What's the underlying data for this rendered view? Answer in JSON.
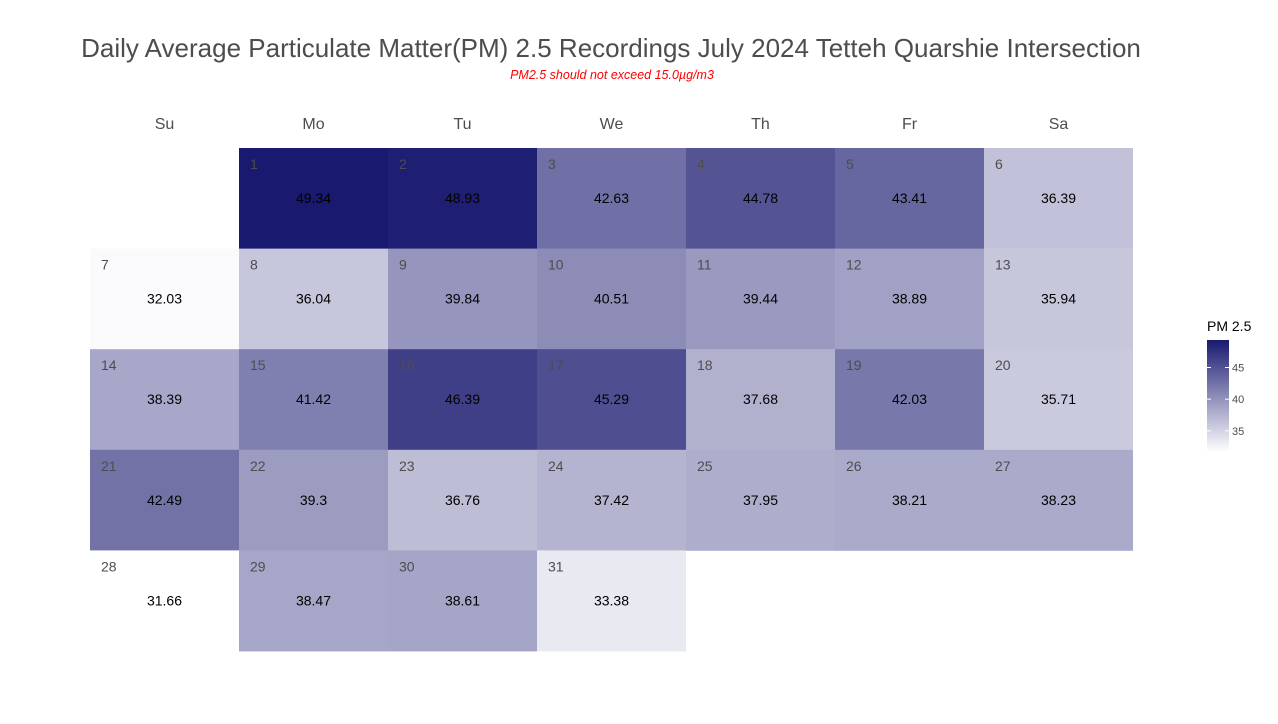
{
  "chart_data": {
    "type": "heatmap",
    "title": "Daily Average Particulate Matter(PM) 2.5 Recordings July 2024 Tetteh Quarshie Intersection",
    "subtitle": "PM2.5 should not exceed 15.0µg/m3",
    "weekdays": [
      "Su",
      "Mo",
      "Tu",
      "We",
      "Th",
      "Fr",
      "Sa"
    ],
    "first_weekday_index": 1,
    "days": [
      1,
      2,
      3,
      4,
      5,
      6,
      7,
      8,
      9,
      10,
      11,
      12,
      13,
      14,
      15,
      16,
      17,
      18,
      19,
      20,
      21,
      22,
      23,
      24,
      25,
      26,
      27,
      28,
      29,
      30,
      31
    ],
    "values": [
      49.34,
      48.93,
      42.63,
      44.78,
      43.41,
      36.39,
      32.03,
      36.04,
      39.84,
      40.51,
      39.44,
      38.89,
      35.94,
      38.39,
      41.42,
      46.39,
      45.29,
      37.68,
      42.03,
      35.71,
      42.49,
      39.3,
      36.76,
      37.42,
      37.95,
      38.21,
      38.23,
      31.66,
      38.47,
      38.61,
      33.38
    ],
    "value_labels": [
      "49.34",
      "48.93",
      "42.63",
      "44.78",
      "43.41",
      "36.39",
      "32.03",
      "36.04",
      "39.84",
      "40.51",
      "39.44",
      "38.89",
      "35.94",
      "38.39",
      "41.42",
      "46.39",
      "45.29",
      "37.68",
      "42.03",
      "35.71",
      "42.49",
      "39.3",
      "36.76",
      "37.42",
      "37.95",
      "38.21",
      "38.23",
      "31.66",
      "38.47",
      "38.61",
      "33.38"
    ],
    "legend": {
      "title": "PM 2.5",
      "ticks": [
        35,
        40,
        45
      ],
      "range": [
        31.66,
        49.34
      ],
      "low_color": "#ffffff",
      "high_color": "#191970"
    }
  }
}
